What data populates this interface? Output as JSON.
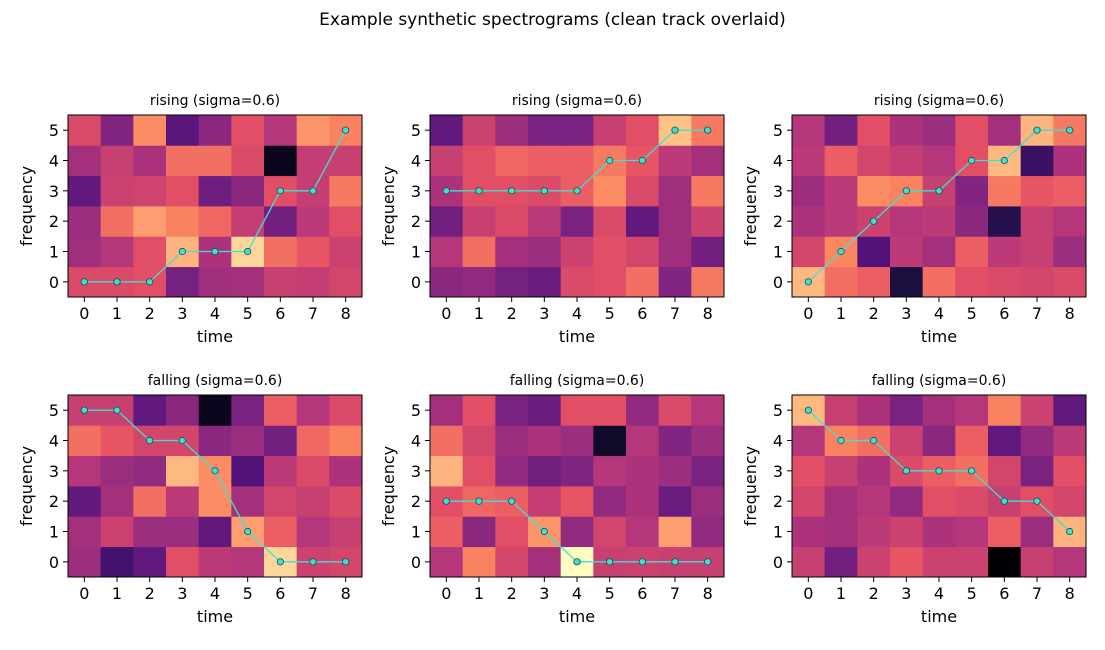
{
  "figure": {
    "suptitle": "Example synthetic spectrograms (clean track overlaid)"
  },
  "style": {
    "track_color": "#40e0d0",
    "marker_edge": "#1a4f4f",
    "colormap": "magma"
  },
  "chart_data": [
    {
      "type": "heatmap",
      "title": "rising  (sigma=0.6)",
      "xlabel": "time",
      "ylabel": "frequency",
      "x": [
        0,
        1,
        2,
        3,
        4,
        5,
        6,
        7,
        8
      ],
      "y": [
        0,
        1,
        2,
        3,
        4,
        5
      ],
      "values": [
        [
          0.6,
          0.6,
          0.62,
          0.35,
          0.45,
          0.46,
          0.55,
          0.54,
          0.58
        ],
        [
          0.45,
          0.5,
          0.62,
          0.85,
          0.48,
          0.92,
          0.7,
          0.64,
          0.56
        ],
        [
          0.44,
          0.7,
          0.8,
          0.74,
          0.68,
          0.54,
          0.34,
          0.52,
          0.62
        ],
        [
          0.3,
          0.56,
          0.57,
          0.62,
          0.33,
          0.4,
          0.62,
          0.54,
          0.72
        ],
        [
          0.46,
          0.55,
          0.48,
          0.7,
          0.7,
          0.6,
          0.05,
          0.54,
          0.55
        ],
        [
          0.6,
          0.38,
          0.76,
          0.28,
          0.4,
          0.62,
          0.5,
          0.78,
          0.74
        ]
      ],
      "track": {
        "x": [
          0,
          1,
          2,
          3,
          4,
          5,
          6,
          7,
          8
        ],
        "y": [
          0,
          0,
          0,
          1,
          1,
          1,
          3,
          3,
          5
        ]
      }
    },
    {
      "type": "heatmap",
      "title": "rising  (sigma=0.6)",
      "xlabel": "time",
      "ylabel": "frequency",
      "x": [
        0,
        1,
        2,
        3,
        4,
        5,
        6,
        7,
        8
      ],
      "y": [
        0,
        1,
        2,
        3,
        4,
        5
      ],
      "values": [
        [
          0.4,
          0.42,
          0.35,
          0.32,
          0.6,
          0.62,
          0.7,
          0.38,
          0.72
        ],
        [
          0.5,
          0.7,
          0.46,
          0.44,
          0.56,
          0.62,
          0.58,
          0.45,
          0.34
        ],
        [
          0.34,
          0.55,
          0.6,
          0.52,
          0.36,
          0.6,
          0.3,
          0.45,
          0.56
        ],
        [
          0.48,
          0.62,
          0.62,
          0.6,
          0.66,
          0.76,
          0.6,
          0.45,
          0.72
        ],
        [
          0.55,
          0.62,
          0.68,
          0.66,
          0.66,
          0.72,
          0.64,
          0.52,
          0.46
        ],
        [
          0.3,
          0.56,
          0.44,
          0.36,
          0.36,
          0.55,
          0.62,
          0.88,
          0.72
        ]
      ],
      "track": {
        "x": [
          0,
          1,
          2,
          3,
          4,
          5,
          6,
          7,
          8
        ],
        "y": [
          3,
          3,
          3,
          3,
          3,
          4,
          4,
          5,
          5
        ]
      }
    },
    {
      "type": "heatmap",
      "title": "rising  (sigma=0.6)",
      "xlabel": "time",
      "ylabel": "frequency",
      "x": [
        0,
        1,
        2,
        3,
        4,
        5,
        6,
        7,
        8
      ],
      "y": [
        0,
        1,
        2,
        3,
        4,
        5
      ],
      "values": [
        [
          0.86,
          0.7,
          0.66,
          0.12,
          0.7,
          0.62,
          0.6,
          0.58,
          0.6
        ],
        [
          0.58,
          0.75,
          0.26,
          0.52,
          0.46,
          0.66,
          0.52,
          0.55,
          0.44
        ],
        [
          0.48,
          0.52,
          0.56,
          0.5,
          0.52,
          0.4,
          0.15,
          0.55,
          0.5
        ],
        [
          0.44,
          0.52,
          0.76,
          0.74,
          0.55,
          0.38,
          0.72,
          0.64,
          0.66
        ],
        [
          0.52,
          0.66,
          0.58,
          0.54,
          0.5,
          0.62,
          0.86,
          0.2,
          0.48
        ],
        [
          0.5,
          0.34,
          0.62,
          0.48,
          0.44,
          0.62,
          0.46,
          0.85,
          0.72
        ]
      ],
      "track": {
        "x": [
          0,
          1,
          2,
          3,
          4,
          5,
          6,
          7,
          8
        ],
        "y": [
          0,
          1,
          2,
          3,
          3,
          4,
          4,
          5,
          5
        ]
      }
    },
    {
      "type": "heatmap",
      "title": "falling  (sigma=0.6)",
      "xlabel": "time",
      "ylabel": "frequency",
      "x": [
        0,
        1,
        2,
        3,
        4,
        5,
        6,
        7,
        8
      ],
      "y": [
        0,
        1,
        2,
        3,
        4,
        5
      ],
      "values": [
        [
          0.44,
          0.22,
          0.3,
          0.62,
          0.52,
          0.5,
          0.92,
          0.56,
          0.58
        ],
        [
          0.46,
          0.56,
          0.44,
          0.44,
          0.3,
          0.8,
          0.66,
          0.5,
          0.55
        ],
        [
          0.3,
          0.46,
          0.7,
          0.52,
          0.76,
          0.46,
          0.58,
          0.55,
          0.6
        ],
        [
          0.5,
          0.44,
          0.42,
          0.86,
          0.76,
          0.26,
          0.52,
          0.6,
          0.48
        ],
        [
          0.7,
          0.64,
          0.58,
          0.58,
          0.4,
          0.44,
          0.34,
          0.68,
          0.74
        ],
        [
          0.55,
          0.55,
          0.3,
          0.4,
          0.05,
          0.36,
          0.66,
          0.5,
          0.6
        ]
      ],
      "track": {
        "x": [
          0,
          1,
          2,
          3,
          4,
          5,
          6,
          7,
          8
        ],
        "y": [
          5,
          5,
          4,
          4,
          3,
          1,
          0,
          0,
          0
        ]
      }
    },
    {
      "type": "heatmap",
      "title": "falling  (sigma=0.6)",
      "xlabel": "time",
      "ylabel": "frequency",
      "x": [
        0,
        1,
        2,
        3,
        4,
        5,
        6,
        7,
        8
      ],
      "y": [
        0,
        1,
        2,
        3,
        4,
        5
      ],
      "values": [
        [
          0.5,
          0.74,
          0.58,
          0.46,
          1.0,
          0.55,
          0.56,
          0.55,
          0.55
        ],
        [
          0.66,
          0.4,
          0.62,
          0.78,
          0.42,
          0.58,
          0.5,
          0.8,
          0.42
        ],
        [
          0.62,
          0.68,
          0.66,
          0.54,
          0.64,
          0.42,
          0.48,
          0.32,
          0.44
        ],
        [
          0.85,
          0.62,
          0.42,
          0.34,
          0.38,
          0.5,
          0.48,
          0.44,
          0.36
        ],
        [
          0.7,
          0.58,
          0.44,
          0.48,
          0.44,
          0.08,
          0.5,
          0.38,
          0.44
        ],
        [
          0.46,
          0.62,
          0.36,
          0.32,
          0.62,
          0.62,
          0.42,
          0.6,
          0.5
        ]
      ],
      "track": {
        "x": [
          0,
          1,
          2,
          3,
          4,
          5,
          6,
          7,
          8
        ],
        "y": [
          2,
          2,
          2,
          1,
          0,
          0,
          0,
          0,
          0
        ]
      }
    },
    {
      "type": "heatmap",
      "title": "falling  (sigma=0.6)",
      "xlabel": "time",
      "ylabel": "frequency",
      "x": [
        0,
        1,
        2,
        3,
        4,
        5,
        6,
        7,
        8
      ],
      "y": [
        0,
        1,
        2,
        3,
        4,
        5
      ],
      "values": [
        [
          0.55,
          0.34,
          0.56,
          0.64,
          0.56,
          0.56,
          0.0,
          0.55,
          0.5
        ],
        [
          0.48,
          0.46,
          0.52,
          0.56,
          0.48,
          0.5,
          0.66,
          0.44,
          0.85
        ],
        [
          0.58,
          0.46,
          0.5,
          0.42,
          0.62,
          0.6,
          0.55,
          0.62,
          0.58
        ],
        [
          0.62,
          0.55,
          0.48,
          0.6,
          0.66,
          0.7,
          0.58,
          0.36,
          0.62
        ],
        [
          0.5,
          0.74,
          0.7,
          0.56,
          0.4,
          0.66,
          0.3,
          0.42,
          0.52
        ],
        [
          0.86,
          0.55,
          0.48,
          0.36,
          0.46,
          0.5,
          0.74,
          0.56,
          0.3
        ]
      ],
      "track": {
        "x": [
          0,
          1,
          2,
          3,
          4,
          5,
          6,
          7,
          8
        ],
        "y": [
          5,
          4,
          4,
          3,
          3,
          3,
          2,
          2,
          1
        ]
      }
    }
  ]
}
